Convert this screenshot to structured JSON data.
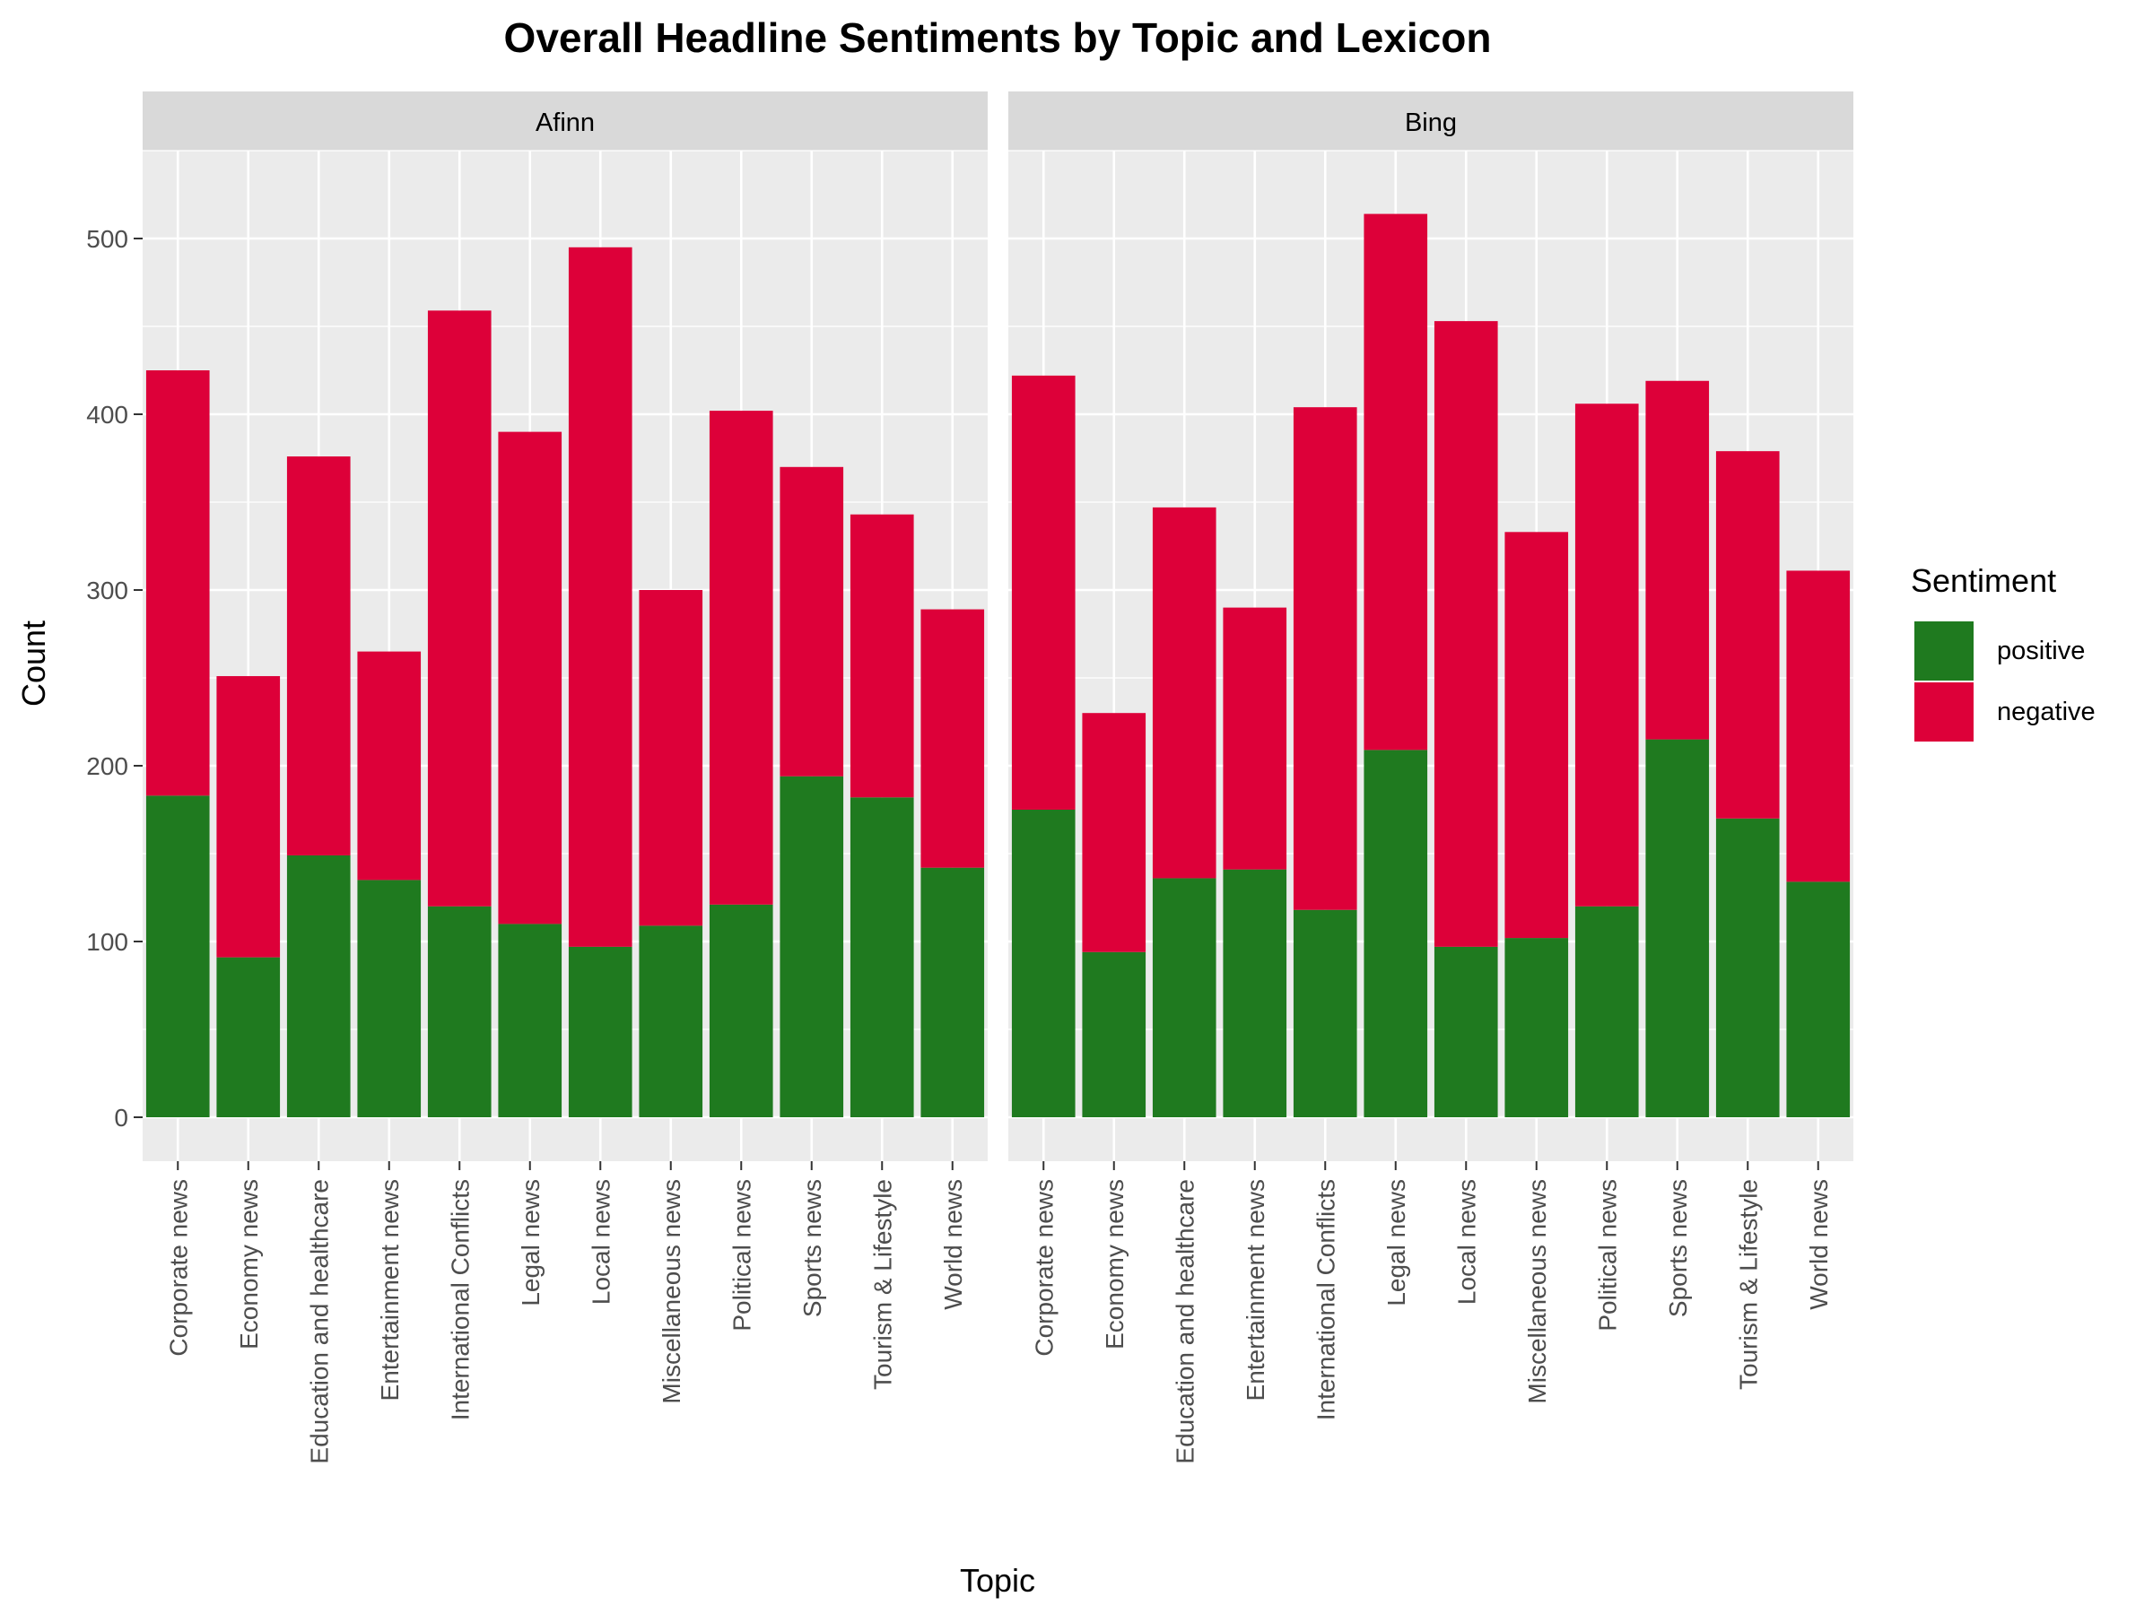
{
  "chart_data": {
    "type": "bar",
    "stacked": true,
    "title": "Overall Headline Sentiments by Topic and Lexicon",
    "xlabel": "Topic",
    "ylabel": "Count",
    "ylim": [
      -25,
      550
    ],
    "yticks": [
      0,
      100,
      200,
      300,
      400,
      500
    ],
    "grid": true,
    "legend": {
      "title": "Sentiment",
      "placement": "right",
      "entries": [
        {
          "name": "positive",
          "color": "#1f7a1f"
        },
        {
          "name": "negative",
          "color": "#dd0039"
        }
      ]
    },
    "categories": [
      "Corporate news",
      "Economy news",
      "Education and healthcare",
      "Entertainment news",
      "International Conflicts",
      "Legal news",
      "Local news",
      "Miscellaneous news",
      "Political news",
      "Sports news",
      "Tourism & Lifestyle",
      "World news"
    ],
    "panels": [
      {
        "name": "Afinn",
        "series": [
          {
            "name": "positive",
            "values": [
              183,
              91,
              149,
              135,
              120,
              110,
              97,
              109,
              121,
              194,
              182,
              142
            ]
          },
          {
            "name": "negative",
            "values": [
              242,
              160,
              227,
              130,
              339,
              280,
              398,
              191,
              281,
              176,
              161,
              147
            ]
          }
        ]
      },
      {
        "name": "Bing",
        "series": [
          {
            "name": "positive",
            "values": [
              175,
              94,
              136,
              141,
              118,
              209,
              97,
              102,
              120,
              215,
              170,
              134
            ]
          },
          {
            "name": "negative",
            "values": [
              247,
              136,
              211,
              149,
              286,
              305,
              356,
              231,
              286,
              204,
              209,
              177
            ]
          }
        ]
      }
    ]
  }
}
